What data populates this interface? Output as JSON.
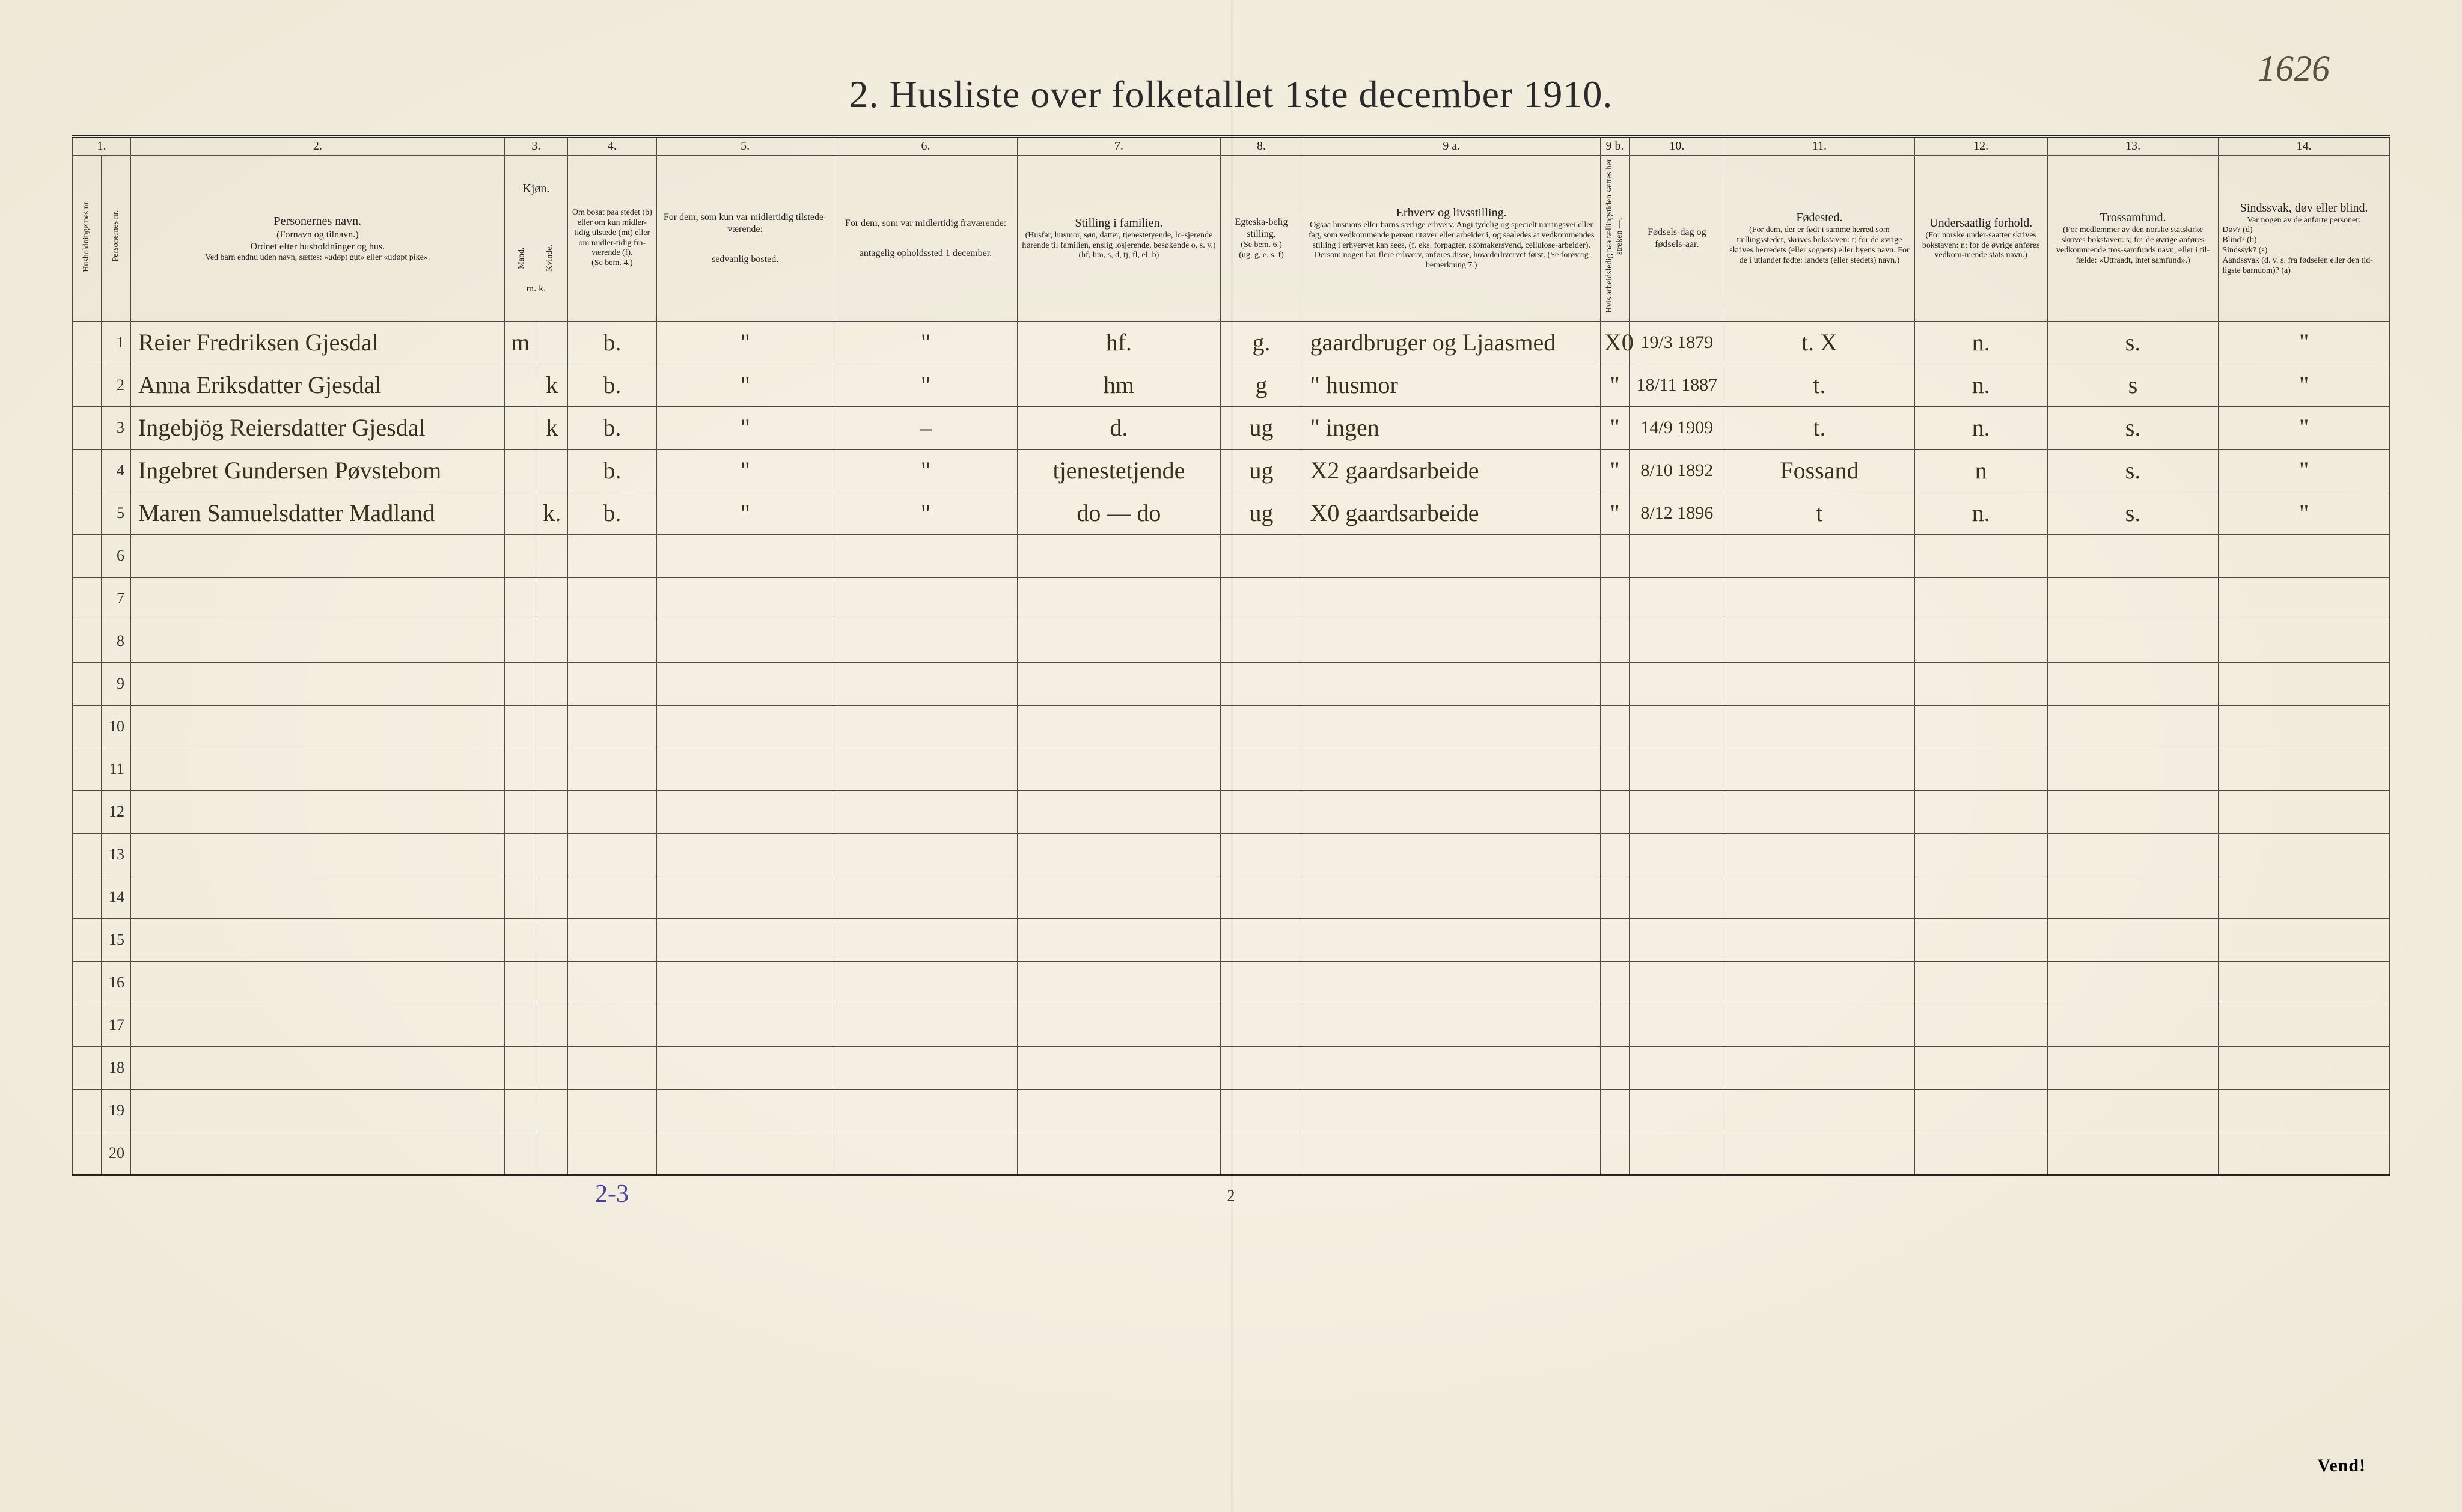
{
  "corner_annotation": "1626",
  "title": "2.  Husliste over folketallet 1ste december 1910.",
  "page_number": "2",
  "footer_handwritten": "2-3",
  "vend_label": "Vend!",
  "col_numbers": [
    "1.",
    "2.",
    "3.",
    "4.",
    "5.",
    "6.",
    "7.",
    "8.",
    "9 a.",
    "9 b.",
    "10.",
    "11.",
    "12.",
    "13.",
    "14."
  ],
  "headers": {
    "c1_a": "Husholdningernes nr.",
    "c1_b": "Personernes nr.",
    "c2_title": "Personernes navn.",
    "c2_sub1": "(Fornavn og tilnavn.)",
    "c2_sub2": "Ordnet efter husholdninger og hus.",
    "c2_sub3": "Ved barn endnu uden navn, sættes: «udøpt gut» eller «udøpt pike».",
    "c3_title": "Kjøn.",
    "c3_m": "Mand.",
    "c3_k": "Kvinde.",
    "c3_mk": "m.  k.",
    "c4_title": "Om bosat paa stedet (b) eller om kun midler-tidig tilstede (mt) eller om midler-tidig fra-værende (f).",
    "c4_sub": "(Se bem. 4.)",
    "c5_title": "For dem, som kun var midlertidig tilstede-værende:",
    "c5_sub": "sedvanlig bosted.",
    "c6_title": "For dem, som var midlertidig fraværende:",
    "c6_sub": "antagelig opholdssted 1 december.",
    "c7_title": "Stilling i familien.",
    "c7_sub1": "(Husfar, husmor, søn, datter, tjenestetyende, lo-sjerende hørende til familien, enslig losjerende, besøkende o. s. v.)",
    "c7_sub2": "(hf, hm, s, d, tj, fl, el, b)",
    "c8_title": "Egteska-belig stilling.",
    "c8_sub1": "(Se bem. 6.)",
    "c8_sub2": "(ug, g, e, s, f)",
    "c9a_title": "Erhverv og livsstilling.",
    "c9a_sub": "Ogsaa husmors eller barns særlige erhverv. Angi tydelig og specielt næringsvei eller fag, som vedkommende person utøver eller arbeider i, og saaledes at vedkommendes stilling i erhvervet kan sees, (f. eks. forpagter, skomakersvend, cellulose-arbeider). Dersom nogen har flere erhverv, anføres disse, hovederhvervet først. (Se forøvrig bemerkning 7.)",
    "c9b_title": "Hvis arbeidsledig paa tællingstiden sættes her streken —.",
    "c10_title": "Fødsels-dag og fødsels-aar.",
    "c11_title": "Fødested.",
    "c11_sub": "(For dem, der er født i samme herred som tællingsstedet, skrives bokstaven: t; for de øvrige skrives herredets (eller sognets) eller byens navn. For de i utlandet fødte: landets (eller stedets) navn.)",
    "c12_title": "Undersaatlig forhold.",
    "c12_sub": "(For norske under-saatter skrives bokstaven: n; for de øvrige anføres vedkom-mende stats navn.)",
    "c13_title": "Trossamfund.",
    "c13_sub": "(For medlemmer av den norske statskirke skrives bokstaven: s; for de øvrige anføres vedkommende tros-samfunds navn, eller i til-fælde: «Uttraadt, intet samfund».)",
    "c14_title": "Sindssvak, døv eller blind.",
    "c14_sub1": "Var nogen av de anførte personer:",
    "c14_sub2": "Døv?  (d)\nBlind?  (b)\nSindssyk?  (s)\nAandssvak (d. v. s. fra fødselen eller den tid-ligste barndom)?  (a)"
  },
  "rows": [
    {
      "num": "1",
      "name": "Reier Fredriksen Gjesdal",
      "m": "m",
      "k": "",
      "bosat": "b.",
      "c5": "\"",
      "c6": "\"",
      "familie": "hf.",
      "egte": "g.",
      "erhverv": "gaardbruger og Ljaasmed",
      "c9b": "X0",
      "fodt": "19/3 1879",
      "fodested": "t.  X",
      "under": "n.",
      "tros": "s.",
      "sind": "\""
    },
    {
      "num": "2",
      "name": "Anna Eriksdatter Gjesdal",
      "m": "",
      "k": "k",
      "bosat": "b.",
      "c5": "\"",
      "c6": "\"",
      "familie": "hm",
      "egte": "g",
      "erhverv": "\"   husmor",
      "c9b": "\"",
      "fodt": "18/11 1887",
      "fodested": "t.",
      "under": "n.",
      "tros": "s",
      "sind": "\""
    },
    {
      "num": "3",
      "name": "Ingebjög Reiersdatter Gjesdal",
      "m": "",
      "k": "k",
      "bosat": "b.",
      "c5": "\"",
      "c6": "–",
      "familie": "d.",
      "egte": "ug",
      "erhverv": "\"   ingen",
      "c9b": "\"",
      "fodt": "14/9 1909",
      "fodested": "t.",
      "under": "n.",
      "tros": "s.",
      "sind": "\""
    },
    {
      "num": "4",
      "name": "Ingebret Gundersen Pøvstebom",
      "m": "",
      "k": "",
      "bosat": "b.",
      "c5": "\"",
      "c6": "\"",
      "familie": "tjenestetjende",
      "egte": "ug",
      "erhverv": "X2   gaardsarbeide",
      "c9b": "\"",
      "fodt": "8/10 1892",
      "fodested": "Fossand",
      "under": "n",
      "tros": "s.",
      "sind": "\""
    },
    {
      "num": "5",
      "name": "Maren Samuelsdatter Madland",
      "m": "",
      "k": "k.",
      "bosat": "b.",
      "c5": "\"",
      "c6": "\"",
      "familie": "do — do",
      "egte": "ug",
      "erhverv": "X0   gaardsarbeide",
      "c9b": "\"",
      "fodt": "8/12 1896",
      "fodested": "t",
      "under": "n.",
      "tros": "s.",
      "sind": "\""
    }
  ],
  "blank_row_numbers": [
    "6",
    "7",
    "8",
    "9",
    "10",
    "11",
    "12",
    "13",
    "14",
    "15",
    "16",
    "17",
    "18",
    "19",
    "20"
  ]
}
